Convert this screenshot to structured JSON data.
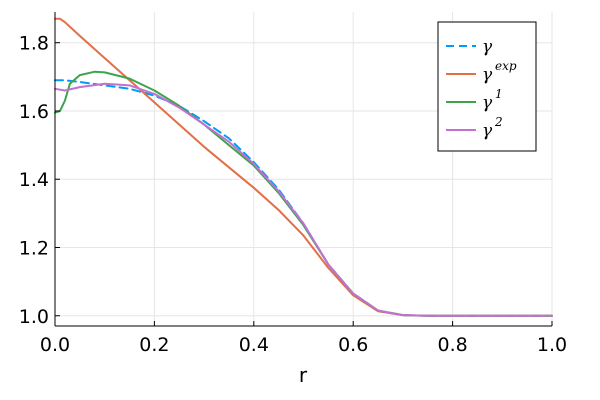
{
  "chart_data": {
    "type": "line",
    "xlabel": "r",
    "ylabel": "",
    "xlim": [
      0.0,
      1.0
    ],
    "ylim": [
      0.97,
      1.89
    ],
    "xticks": [
      0.0,
      0.2,
      0.4,
      0.6,
      0.8,
      1.0
    ],
    "xtick_labels": [
      "0.0",
      "0.2",
      "0.4",
      "0.6",
      "0.8",
      "1.0"
    ],
    "yticks": [
      1.0,
      1.2,
      1.4,
      1.6,
      1.8
    ],
    "ytick_labels": [
      "1.0",
      "1.2",
      "1.4",
      "1.6",
      "1.8"
    ],
    "grid": true,
    "legend_position": "top-right",
    "series": [
      {
        "name": "γ",
        "legend_sup": "",
        "color": "#009af9",
        "style": "dashed",
        "x": [
          0.0,
          0.02,
          0.05,
          0.1,
          0.15,
          0.2,
          0.25,
          0.3,
          0.35,
          0.4,
          0.45,
          0.5,
          0.55,
          0.6,
          0.65,
          0.7,
          0.75,
          0.8,
          0.9,
          1.0
        ],
        "y": [
          1.69,
          1.69,
          1.685,
          1.675,
          1.665,
          1.645,
          1.615,
          1.57,
          1.52,
          1.45,
          1.37,
          1.27,
          1.15,
          1.065,
          1.015,
          1.002,
          1.0,
          1.0,
          1.0,
          1.0
        ]
      },
      {
        "name": "γ",
        "legend_sup": "exp",
        "color": "#e26f46",
        "style": "solid",
        "x": [
          0.0,
          0.01,
          0.02,
          0.05,
          0.1,
          0.15,
          0.2,
          0.25,
          0.3,
          0.35,
          0.4,
          0.45,
          0.5,
          0.55,
          0.6,
          0.65,
          0.7,
          0.75,
          0.8,
          0.9,
          1.0
        ],
        "y": [
          1.87,
          1.87,
          1.86,
          1.82,
          1.755,
          1.69,
          1.625,
          1.56,
          1.495,
          1.435,
          1.375,
          1.31,
          1.235,
          1.14,
          1.06,
          1.013,
          1.002,
          1.0,
          1.0,
          1.0,
          1.0
        ]
      },
      {
        "name": "γ",
        "legend_sup": "1",
        "color": "#3da44d",
        "style": "solid",
        "x": [
          0.0,
          0.01,
          0.02,
          0.03,
          0.05,
          0.08,
          0.1,
          0.15,
          0.2,
          0.25,
          0.3,
          0.35,
          0.4,
          0.45,
          0.5,
          0.55,
          0.6,
          0.65,
          0.7,
          0.75,
          0.8,
          0.9,
          1.0
        ],
        "y": [
          1.595,
          1.6,
          1.63,
          1.68,
          1.705,
          1.715,
          1.713,
          1.695,
          1.66,
          1.615,
          1.56,
          1.5,
          1.44,
          1.36,
          1.265,
          1.15,
          1.065,
          1.015,
          1.002,
          1.0,
          1.0,
          1.0,
          1.0
        ]
      },
      {
        "name": "γ",
        "legend_sup": "2",
        "color": "#c271d2",
        "style": "solid",
        "x": [
          0.0,
          0.02,
          0.05,
          0.1,
          0.15,
          0.2,
          0.25,
          0.3,
          0.35,
          0.4,
          0.45,
          0.5,
          0.55,
          0.6,
          0.65,
          0.7,
          0.75,
          0.8,
          0.9,
          1.0
        ],
        "y": [
          1.665,
          1.66,
          1.67,
          1.68,
          1.675,
          1.65,
          1.61,
          1.56,
          1.51,
          1.445,
          1.365,
          1.27,
          1.15,
          1.065,
          1.015,
          1.002,
          1.0,
          1.0,
          1.0,
          1.0
        ]
      }
    ]
  }
}
